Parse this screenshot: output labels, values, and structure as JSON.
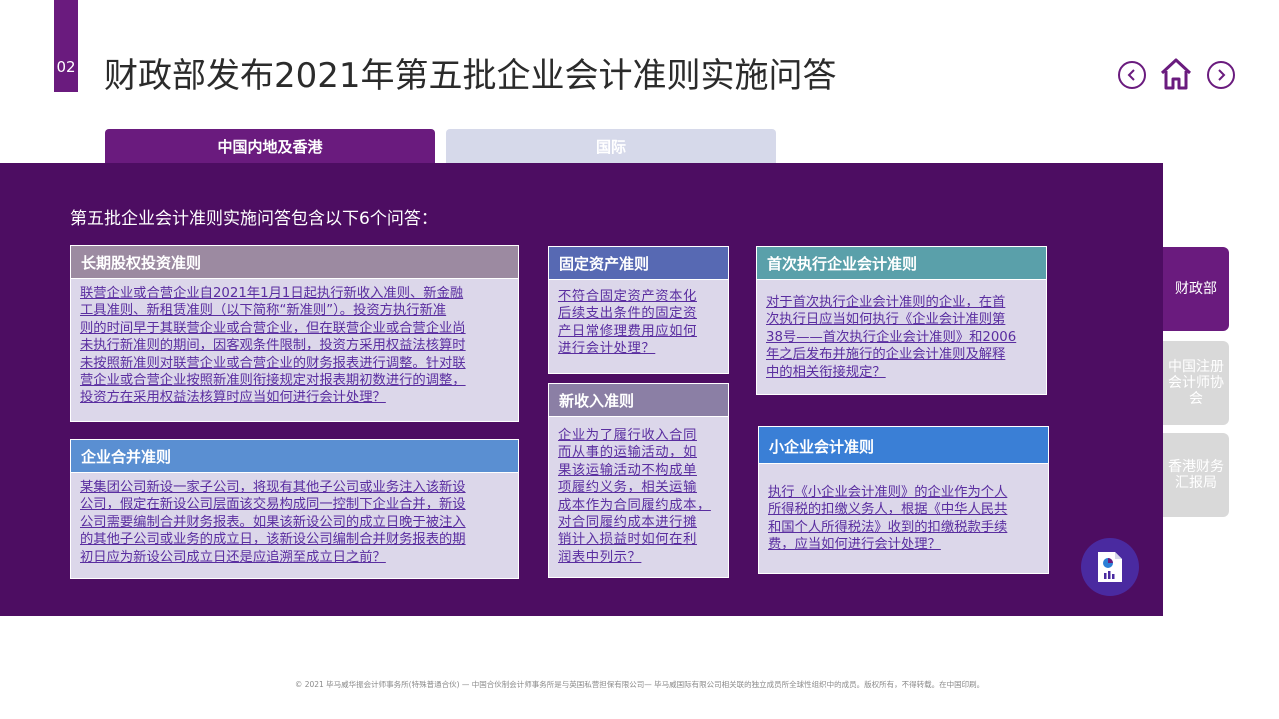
{
  "header": {
    "section_number": "02",
    "title": "财政部发布2021年第五批企业会计准则实施问答"
  },
  "nav": {
    "prev_icon": "chevron-left-icon",
    "home_icon": "home-icon",
    "next_icon": "chevron-right-icon"
  },
  "tabs": [
    {
      "label": "中国内地及香港",
      "active": true
    },
    {
      "label": "国际",
      "active": false
    }
  ],
  "intro": "第五批企业会计准则实施问答包含以下6个问答：",
  "cards": {
    "long_term_equity": {
      "title": "长期股权投资准则",
      "lines": [
        "联营企业或合营企业自2021年1月1日起执行新收入准则、新金融",
        "工具准则、新租赁准则（以下简称“新准则”）。投资方执行新准",
        "则的时间早于其联营企业或合营企业，但在联营企业或合营企业尚",
        "未执行新准则的期间，因客观条件限制，投资方采用权益法核算时",
        "未按照新准则对联营企业或合营企业的财务报表进行调整。针对联",
        "营企业或合营企业按照新准则衔接规定对报表期初数进行的调整，",
        "投资方在采用权益法核算时应当如何进行会计处理？"
      ]
    },
    "business_combination": {
      "title": "企业合并准则",
      "lines": [
        "某集团公司新设一家子公司，将现有其他子公司或业务注入该新设",
        "公司，假定在新设公司层面该交易构成同一控制下企业合并，新设",
        "公司需要编制合并财务报表。如果该新设公司的成立日晚于被注入",
        "的其他子公司或业务的成立日，该新设公司编制合并财务报表的期",
        "初日应为新设公司成立日还是应追溯至成立日之前？"
      ]
    },
    "fixed_assets": {
      "title": "固定资产准则",
      "lines": [
        "不符合固定资产资本化",
        "后续支出条件的固定资",
        "产日常修理费用应如何",
        "进行会计处理？"
      ]
    },
    "revenue": {
      "title": "新收入准则",
      "lines": [
        "企业为了履行收入合同",
        "而从事的运输活动，如",
        "果该运输活动不构成单",
        "项履约义务，相关运输",
        "成本作为合同履约成本，",
        "对合同履约成本进行摊",
        "销计入损益时如何在利",
        "润表中列示？"
      ]
    },
    "first_time_adoption": {
      "title": "首次执行企业会计准则",
      "lines": [
        "对于首次执行企业会计准则的企业，在首",
        "次执行日应当如何执行《企业会计准则第",
        "38号——首次执行企业会计准则》和2006",
        "年之后发布并施行的企业会计准则及解释",
        "中的相关衔接规定？"
      ]
    },
    "small_enterprise": {
      "title": "小企业会计准则",
      "lines": [
        "执行《小企业会计准则》的企业作为个人",
        "所得税的扣缴义务人，根据《中华人民共",
        "和国个人所得税法》收到的扣缴税款手续",
        "费，应当如何进行会计处理？"
      ]
    }
  },
  "side_tabs": [
    {
      "label": "财政部",
      "active": true
    },
    {
      "label": "中国注册会计师协会",
      "active": false
    },
    {
      "label": "香港财务汇报局",
      "active": false
    }
  ],
  "badge": {
    "icon": "report-chart-icon"
  },
  "footer": "© 2021 毕马威华振会计师事务所(特殊普通合伙) — 中国合伙制会计师事务所是与英国私营担保有限公司— 毕马威国际有限公司相关联的独立成员所全球性组织中的成员。版权所有，不得转载。在中国印刷。",
  "colors": {
    "brand_purple": "#6a1b7e",
    "panel_purple": "#4d0d62",
    "link_text": "#5a2ea0"
  }
}
